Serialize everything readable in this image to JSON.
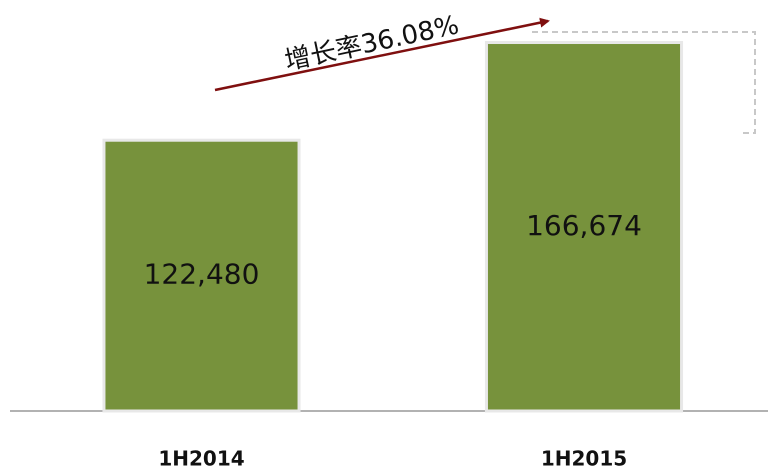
{
  "chart_data": {
    "type": "bar",
    "categories": [
      "1H2014",
      "1H2015"
    ],
    "values": [
      122480,
      166674
    ],
    "value_labels": [
      "122,480",
      "166,674"
    ],
    "color": "#77923c",
    "ylim": [
      0,
      185000
    ],
    "annotation": "增长率36.08%"
  }
}
